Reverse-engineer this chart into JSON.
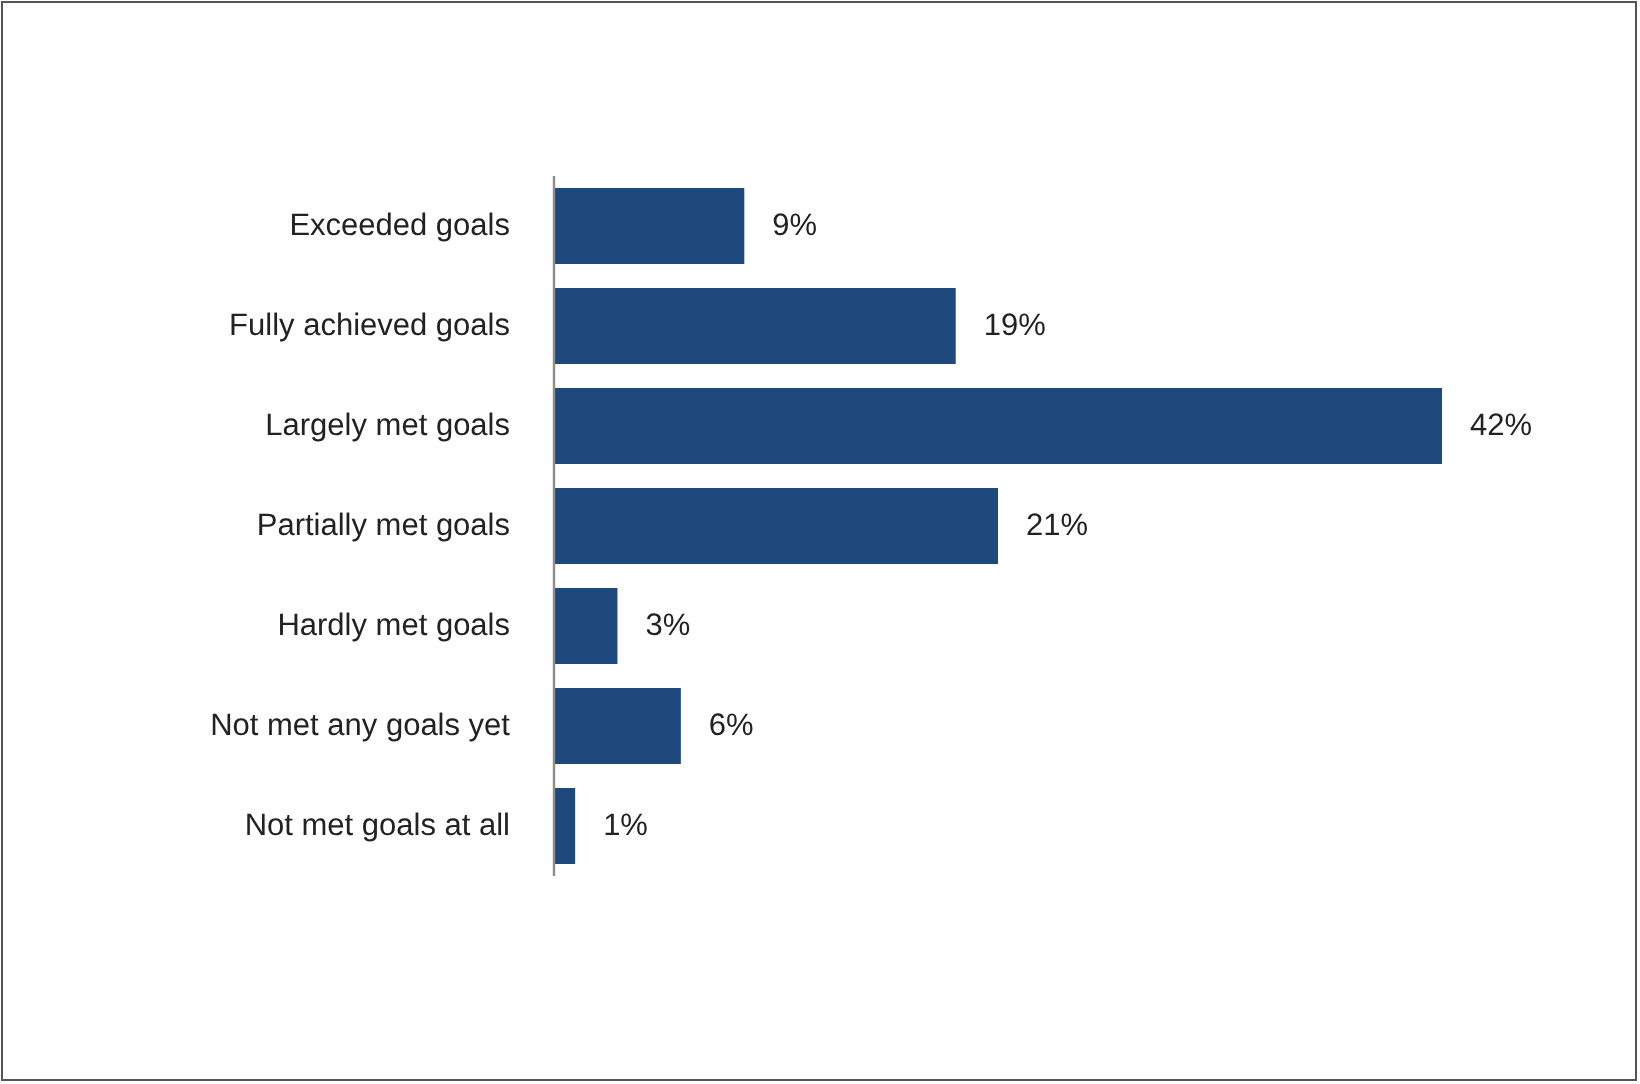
{
  "chart_data": {
    "type": "bar",
    "orientation": "horizontal",
    "categories": [
      "Exceeded goals",
      "Fully achieved goals",
      "Largely met goals",
      "Partially met goals",
      "Hardly met goals",
      "Not met any goals yet",
      "Not met goals at all"
    ],
    "values": [
      9,
      19,
      42,
      21,
      3,
      6,
      1
    ],
    "color": "#1f497d",
    "value_labels": [
      "9%",
      "19%",
      "42%",
      "21%",
      "3%",
      "6%",
      "1%"
    ]
  }
}
